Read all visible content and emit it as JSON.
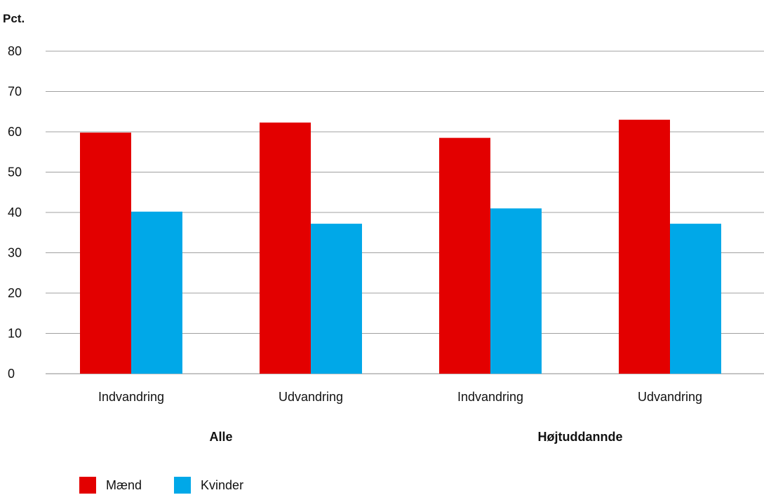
{
  "chart_data": {
    "type": "bar",
    "ylabel": "Pct.",
    "ylim": [
      0,
      80
    ],
    "yticks": [
      0,
      10,
      20,
      30,
      40,
      50,
      60,
      70,
      80
    ],
    "categories": [
      "Indvandring",
      "Udvandring",
      "Indvandring",
      "Udvandring"
    ],
    "groups": [
      {
        "label": "Alle",
        "categories": [
          0,
          1
        ]
      },
      {
        "label": "Højtuddannde",
        "categories": [
          2,
          3
        ]
      }
    ],
    "series": [
      {
        "name": "Mænd",
        "color": "#e30000",
        "values": [
          59.8,
          62.3,
          58.5,
          63.0
        ]
      },
      {
        "name": "Kvinder",
        "color": "#00a8e8",
        "values": [
          40.2,
          37.2,
          41.0,
          37.2
        ]
      }
    ],
    "grid": true,
    "legend_position": "bottom-left"
  }
}
